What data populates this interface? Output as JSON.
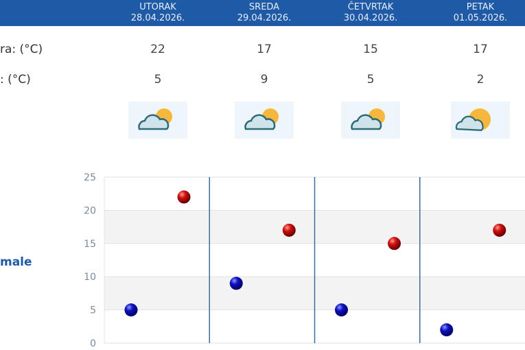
{
  "days": [
    {
      "name": "UTORAK",
      "date": "28.04.2026.",
      "max": "22",
      "min": "5",
      "icon": "partly-cloudy-icon"
    },
    {
      "name": "SREDA",
      "date": "29.04.2026.",
      "max": "17",
      "min": "9",
      "icon": "partly-cloudy-icon"
    },
    {
      "name": "ČETVRTAK",
      "date": "30.04.2026.",
      "max": "15",
      "min": "5",
      "icon": "partly-cloudy-icon"
    },
    {
      "name": "PETAK",
      "date": "01.05.2026.",
      "max": "17",
      "min": "2",
      "icon": "mostly-sunny-icon"
    }
  ],
  "labels": {
    "max_row": "ra: (°C)",
    "min_row": ": (°C)",
    "chart_side": "male"
  },
  "colors": {
    "header": "#1f5aa6",
    "max_dot": "#d01010",
    "min_dot": "#1010c0"
  },
  "chart_data": {
    "type": "scatter",
    "categories": [
      "28.04.2026.",
      "29.04.2026.",
      "30.04.2026.",
      "01.05.2026."
    ],
    "series": [
      {
        "values": [
          22,
          17,
          15,
          17
        ],
        "color": "#d01010"
      },
      {
        "values": [
          5,
          9,
          5,
          2
        ],
        "color": "#1010c0"
      }
    ],
    "ylim": [
      0,
      25
    ],
    "yticks": [
      "0",
      "5",
      "10",
      "15",
      "20",
      "25"
    ],
    "grid": "alternating horizontal bands"
  }
}
